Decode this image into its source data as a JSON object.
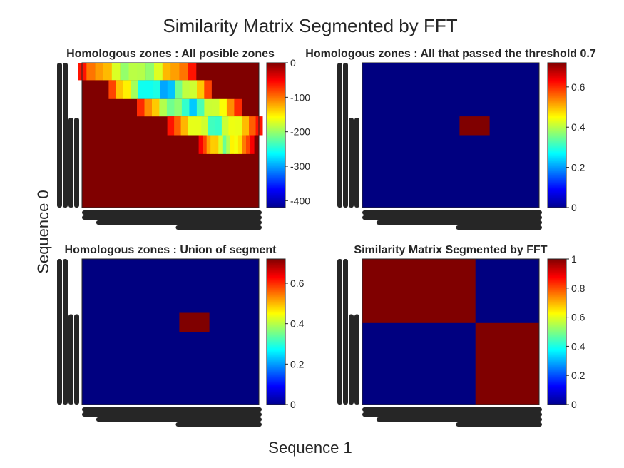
{
  "figure": {
    "title": "Similarity Matrix Segmented by FFT",
    "xlabel": "Sequence 1",
    "ylabel": "Sequence 0"
  },
  "chart_data": [
    {
      "type": "heatmap",
      "title": "Homologous zones : All posible zones",
      "colormap": "jet",
      "clim": [
        -420,
        0
      ],
      "colorbar_ticks": [
        0,
        -100,
        -200,
        -300,
        -400
      ],
      "background_value": 0,
      "bands": [
        {
          "rows": [
            0,
            0.12
          ],
          "cols": [
            0.0,
            0.62
          ],
          "low": -240,
          "high": -60
        },
        {
          "rows": [
            0.12,
            0.25
          ],
          "cols": [
            0.17,
            0.71
          ],
          "low": -340,
          "high": -80
        },
        {
          "rows": [
            0.25,
            0.37
          ],
          "cols": [
            0.33,
            0.88
          ],
          "low": -300,
          "high": -70
        },
        {
          "rows": [
            0.37,
            0.5
          ],
          "cols": [
            0.5,
            1.0
          ],
          "low": -260,
          "high": -60
        },
        {
          "rows": [
            0.5,
            0.63
          ],
          "cols": [
            0.67,
            0.96
          ],
          "low": -230,
          "high": -50
        }
      ]
    },
    {
      "type": "heatmap",
      "title": "Homologous zones : All that passed the threshold 0.7",
      "colormap": "jet",
      "clim": [
        0,
        0.72
      ],
      "colorbar_ticks": [
        0,
        0.2,
        0.4,
        0.6
      ],
      "background_value": 0,
      "blocks": [
        {
          "rows": [
            0.37,
            0.5
          ],
          "cols": [
            0.55,
            0.72
          ],
          "value": 0.72
        }
      ]
    },
    {
      "type": "heatmap",
      "title": "Homologous zones : Union of segment",
      "colormap": "jet",
      "clim": [
        0,
        0.72
      ],
      "colorbar_ticks": [
        0,
        0.2,
        0.4,
        0.6
      ],
      "background_value": 0,
      "blocks": [
        {
          "rows": [
            0.37,
            0.5
          ],
          "cols": [
            0.55,
            0.72
          ],
          "value": 0.72
        }
      ]
    },
    {
      "type": "heatmap",
      "title": "Similarity Matrix Segmented by FFT",
      "colormap": "jet",
      "clim": [
        0,
        1
      ],
      "colorbar_ticks": [
        0,
        0.2,
        0.4,
        0.6,
        0.8,
        1
      ],
      "background_value": 0,
      "blocks": [
        {
          "rows": [
            0,
            0.44
          ],
          "cols": [
            0,
            0.64
          ],
          "value": 1
        },
        {
          "rows": [
            0.44,
            1.0
          ],
          "cols": [
            0.64,
            1.0
          ],
          "value": 1
        }
      ]
    }
  ]
}
